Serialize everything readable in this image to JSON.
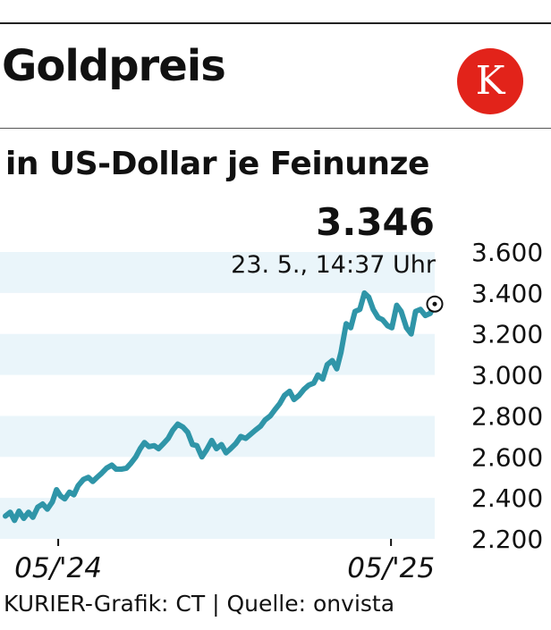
{
  "header": {
    "title": "Goldpreis",
    "logo_letter": "K"
  },
  "footer": {
    "credit": "KURIER-Grafik: CT | Quelle: onvista"
  },
  "chart_data": {
    "type": "line",
    "subtitle": "in US-Dollar je Feinunze",
    "callout": {
      "value": "3.346",
      "date": "23. 5., 14:37 Uhr"
    },
    "y_ticks": [
      3600,
      3400,
      3200,
      3000,
      2800,
      2600,
      2400,
      2200
    ],
    "y_tick_labels": [
      "3.600",
      "3.400",
      "3.200",
      "3.000",
      "2.800",
      "2.600",
      "2.400",
      "2.200"
    ],
    "ylim": [
      2200,
      3600
    ],
    "x_tick_labels": [
      "05/'24",
      "05/'25"
    ],
    "grid": "alternating horizontal bands",
    "colors": {
      "line": "#2f95a8",
      "band": "#eaf5fa"
    },
    "series": [
      {
        "values": [
          [
            0.0,
            2311
          ],
          [
            3.4,
            2330
          ],
          [
            6.4,
            2290
          ],
          [
            9.5,
            2335
          ],
          [
            12.9,
            2300
          ],
          [
            16.2,
            2330
          ],
          [
            19.3,
            2305
          ],
          [
            22.7,
            2355
          ],
          [
            26.1,
            2370
          ],
          [
            29.4,
            2345
          ],
          [
            32.9,
            2380
          ],
          [
            35.8,
            2440
          ],
          [
            38.6,
            2410
          ],
          [
            41.6,
            2395
          ],
          [
            44.9,
            2428
          ],
          [
            48.0,
            2415
          ],
          [
            51.0,
            2460
          ],
          [
            54.7,
            2490
          ],
          [
            58.1,
            2500
          ],
          [
            61.2,
            2480
          ],
          [
            64.2,
            2500
          ],
          [
            67.4,
            2520
          ],
          [
            70.8,
            2545
          ],
          [
            74.5,
            2560
          ],
          [
            77.5,
            2540
          ],
          [
            81.2,
            2540
          ],
          [
            84.8,
            2545
          ],
          [
            88.0,
            2570
          ],
          [
            91.3,
            2600
          ],
          [
            94.4,
            2640
          ],
          [
            97.4,
            2670
          ],
          [
            100.5,
            2650
          ],
          [
            104.2,
            2655
          ],
          [
            107.2,
            2640
          ],
          [
            110.7,
            2665
          ],
          [
            114.0,
            2690
          ],
          [
            117.2,
            2730
          ],
          [
            120.7,
            2760
          ],
          [
            124.4,
            2745
          ],
          [
            127.7,
            2720
          ],
          [
            131.0,
            2660
          ],
          [
            134.1,
            2655
          ],
          [
            137.6,
            2600
          ],
          [
            140.9,
            2635
          ],
          [
            144.5,
            2680
          ],
          [
            147.8,
            2640
          ],
          [
            151.3,
            2660
          ],
          [
            154.5,
            2620
          ],
          [
            157.7,
            2640
          ],
          [
            161.3,
            2665
          ],
          [
            164.8,
            2700
          ],
          [
            168.3,
            2690
          ],
          [
            171.6,
            2710
          ],
          [
            175.0,
            2730
          ],
          [
            178.7,
            2750
          ],
          [
            181.8,
            2780
          ],
          [
            185.5,
            2800
          ],
          [
            188.7,
            2830
          ],
          [
            192.1,
            2860
          ],
          [
            195.4,
            2900
          ],
          [
            199.0,
            2920
          ],
          [
            202.1,
            2880
          ],
          [
            205.6,
            2900
          ],
          [
            209.1,
            2930
          ],
          [
            212.4,
            2950
          ],
          [
            215.9,
            2960
          ],
          [
            218.8,
            3000
          ],
          [
            222.2,
            2980
          ],
          [
            225.3,
            3050
          ],
          [
            228.9,
            3070
          ],
          [
            232.0,
            3030
          ],
          [
            235.0,
            3110
          ],
          [
            238.6,
            3250
          ],
          [
            241.8,
            3230
          ],
          [
            244.8,
            3310
          ],
          [
            248.2,
            3320
          ],
          [
            251.4,
            3400
          ],
          [
            254.4,
            3380
          ],
          [
            257.5,
            3320
          ],
          [
            261.0,
            3280
          ],
          [
            264.0,
            3270
          ],
          [
            267.6,
            3240
          ],
          [
            270.6,
            3230
          ],
          [
            274.0,
            3340
          ],
          [
            277.1,
            3310
          ],
          [
            280.8,
            3230
          ],
          [
            284.1,
            3200
          ],
          [
            287.2,
            3310
          ],
          [
            290.6,
            3320
          ],
          [
            294.0,
            3290
          ],
          [
            297.4,
            3300
          ],
          [
            300.6,
            3346
          ]
        ]
      }
    ]
  }
}
